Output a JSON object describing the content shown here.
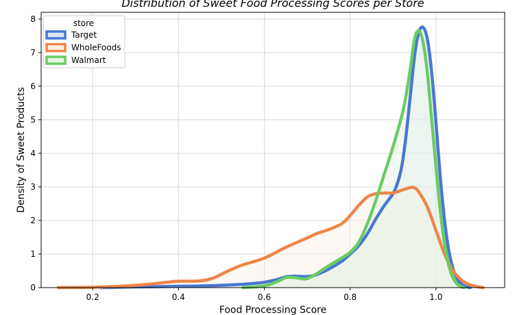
{
  "chart_data": {
    "type": "area",
    "title": "Distribution of Sweet Food Processing Scores per Store",
    "xlabel": "Food Processing Score",
    "ylabel": "Density of Sweet Products",
    "xlim": [
      0.08,
      1.16
    ],
    "ylim": [
      0,
      8.2
    ],
    "xticks": [
      0.2,
      0.4,
      0.6,
      0.8,
      1.0
    ],
    "xtick_labels": [
      "0.2",
      "0.4",
      "0.6",
      "0.8",
      "1.0"
    ],
    "yticks": [
      0,
      1,
      2,
      3,
      4,
      5,
      6,
      7,
      8
    ],
    "ytick_labels": [
      "0",
      "1",
      "2",
      "3",
      "4",
      "5",
      "6",
      "7",
      "8"
    ],
    "grid": true,
    "legend": {
      "title": "store",
      "placement": "top-left"
    },
    "series": [
      {
        "name": "Target",
        "color": "#4878d0",
        "fill": "#dde7f3",
        "points": [
          [
            0.22,
            0
          ],
          [
            0.3,
            0.02
          ],
          [
            0.4,
            0.04
          ],
          [
            0.45,
            0.05
          ],
          [
            0.5,
            0.07
          ],
          [
            0.55,
            0.1
          ],
          [
            0.58,
            0.13
          ],
          [
            0.6,
            0.16
          ],
          [
            0.63,
            0.24
          ],
          [
            0.65,
            0.32
          ],
          [
            0.67,
            0.34
          ],
          [
            0.7,
            0.33
          ],
          [
            0.72,
            0.38
          ],
          [
            0.75,
            0.55
          ],
          [
            0.78,
            0.78
          ],
          [
            0.8,
            1.0
          ],
          [
            0.82,
            1.25
          ],
          [
            0.84,
            1.6
          ],
          [
            0.86,
            2.05
          ],
          [
            0.88,
            2.45
          ],
          [
            0.9,
            2.8
          ],
          [
            0.91,
            3.1
          ],
          [
            0.92,
            3.6
          ],
          [
            0.93,
            4.5
          ],
          [
            0.94,
            5.7
          ],
          [
            0.95,
            6.9
          ],
          [
            0.96,
            7.6
          ],
          [
            0.97,
            7.75
          ],
          [
            0.98,
            7.4
          ],
          [
            0.99,
            6.4
          ],
          [
            1.0,
            4.9
          ],
          [
            1.01,
            3.3
          ],
          [
            1.02,
            2.0
          ],
          [
            1.03,
            1.1
          ],
          [
            1.04,
            0.55
          ],
          [
            1.05,
            0.25
          ],
          [
            1.06,
            0.1
          ],
          [
            1.07,
            0.03
          ],
          [
            1.08,
            0
          ]
        ]
      },
      {
        "name": "WholeFoods",
        "color": "#ee854a",
        "fill": "#fcefe6",
        "points": [
          [
            0.12,
            0
          ],
          [
            0.2,
            0.01
          ],
          [
            0.28,
            0.05
          ],
          [
            0.33,
            0.1
          ],
          [
            0.38,
            0.17
          ],
          [
            0.4,
            0.19
          ],
          [
            0.45,
            0.2
          ],
          [
            0.48,
            0.28
          ],
          [
            0.5,
            0.4
          ],
          [
            0.53,
            0.58
          ],
          [
            0.55,
            0.68
          ],
          [
            0.6,
            0.88
          ],
          [
            0.65,
            1.2
          ],
          [
            0.7,
            1.48
          ],
          [
            0.72,
            1.6
          ],
          [
            0.75,
            1.73
          ],
          [
            0.78,
            1.9
          ],
          [
            0.8,
            2.15
          ],
          [
            0.82,
            2.45
          ],
          [
            0.84,
            2.7
          ],
          [
            0.86,
            2.8
          ],
          [
            0.88,
            2.82
          ],
          [
            0.9,
            2.82
          ],
          [
            0.92,
            2.9
          ],
          [
            0.94,
            2.98
          ],
          [
            0.95,
            2.97
          ],
          [
            0.96,
            2.85
          ],
          [
            0.98,
            2.4
          ],
          [
            1.0,
            1.7
          ],
          [
            1.02,
            1.0
          ],
          [
            1.04,
            0.5
          ],
          [
            1.06,
            0.22
          ],
          [
            1.08,
            0.08
          ],
          [
            1.1,
            0.02
          ],
          [
            1.11,
            0
          ]
        ]
      },
      {
        "name": "Walmart",
        "color": "#6acc64",
        "fill": "#e4f4e1",
        "points": [
          [
            0.55,
            0
          ],
          [
            0.6,
            0.05
          ],
          [
            0.63,
            0.18
          ],
          [
            0.65,
            0.3
          ],
          [
            0.67,
            0.3
          ],
          [
            0.69,
            0.26
          ],
          [
            0.7,
            0.27
          ],
          [
            0.72,
            0.4
          ],
          [
            0.75,
            0.65
          ],
          [
            0.78,
            0.88
          ],
          [
            0.8,
            1.05
          ],
          [
            0.82,
            1.35
          ],
          [
            0.84,
            1.9
          ],
          [
            0.86,
            2.6
          ],
          [
            0.88,
            3.4
          ],
          [
            0.9,
            4.2
          ],
          [
            0.92,
            5.1
          ],
          [
            0.93,
            5.7
          ],
          [
            0.94,
            6.5
          ],
          [
            0.95,
            7.4
          ],
          [
            0.96,
            7.65
          ],
          [
            0.97,
            7.3
          ],
          [
            0.98,
            6.4
          ],
          [
            0.99,
            5.0
          ],
          [
            1.0,
            3.6
          ],
          [
            1.01,
            2.3
          ],
          [
            1.02,
            1.3
          ],
          [
            1.03,
            0.65
          ],
          [
            1.04,
            0.28
          ],
          [
            1.05,
            0.1
          ],
          [
            1.06,
            0.02
          ],
          [
            1.065,
            0
          ]
        ]
      }
    ]
  }
}
